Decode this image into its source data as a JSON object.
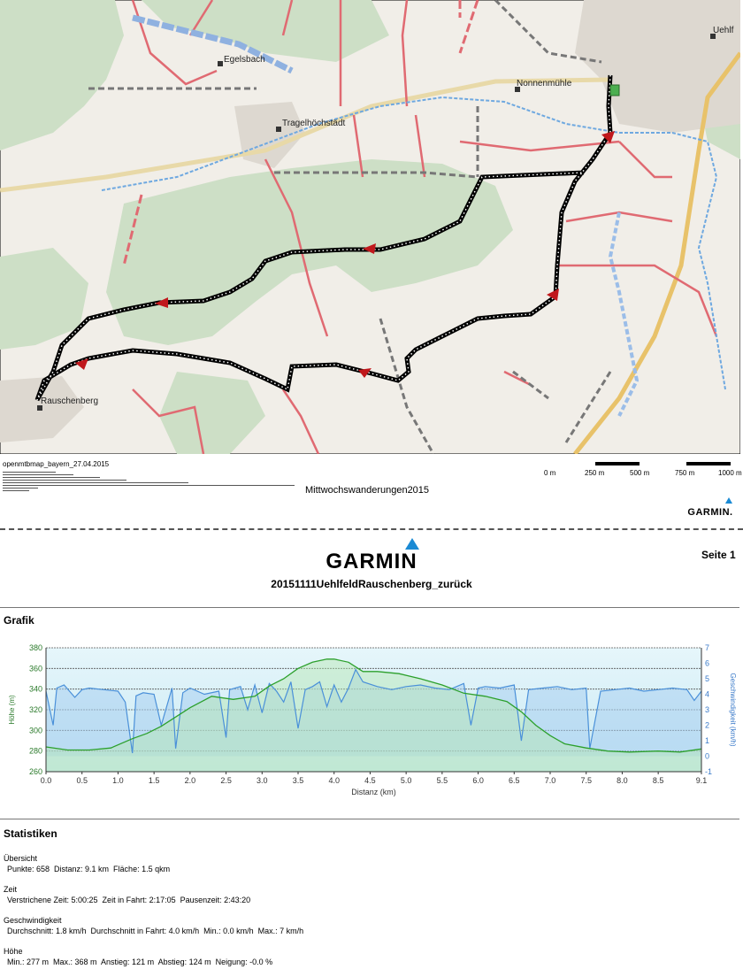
{
  "map": {
    "places": {
      "egelsbach": "Egelsbach",
      "nonnenmuehle": "Nonnenmühle",
      "tragelhoechstaedt": "Tragelhöchstädt",
      "rauschenberg": "Rauschenberg",
      "uehlfeld": "Uehlf"
    },
    "source": "openmtbmap_bayern_27.04.2015",
    "collection": "Mittwochswanderungen2015",
    "scale": [
      "0 m",
      "250 m",
      "500 m",
      "750 m",
      "1000 m"
    ],
    "brand": "GARMIN."
  },
  "header": {
    "brand": "GARMIN",
    "page": "Seite 1",
    "track_title": "20151111UehlfeldRauschenberg_zurück"
  },
  "grafik": {
    "title": "Grafik",
    "chart_data": {
      "type": "line",
      "xlabel": "Distanz   (km)",
      "ylabel_left": "Höhe (m)",
      "ylabel_right": "Geschwindigkeit (km/h)",
      "xlim": [
        0,
        9.1
      ],
      "ylim_left": [
        260,
        380
      ],
      "ylim_right": [
        -1,
        7
      ],
      "x_ticks": [
        "0.0",
        "0.5",
        "1.0",
        "1.5",
        "2.0",
        "2.5",
        "3.0",
        "3.5",
        "4.0",
        "4.5",
        "5.0",
        "5.5",
        "6.0",
        "6.5",
        "7.0",
        "7.5",
        "8.0",
        "8.5",
        "9.1"
      ],
      "y_ticks_left": [
        "260",
        "280",
        "300",
        "320",
        "340",
        "360",
        "380"
      ],
      "y_ticks_right": [
        "-1",
        "0",
        "1",
        "2",
        "3",
        "4",
        "5",
        "6",
        "7"
      ],
      "series": [
        {
          "name": "Höhe",
          "axis": "left",
          "color": "#2ca02c",
          "x": [
            0,
            0.3,
            0.6,
            0.9,
            1.2,
            1.4,
            1.6,
            1.8,
            2.0,
            2.3,
            2.6,
            2.9,
            3.1,
            3.3,
            3.5,
            3.7,
            3.9,
            4.0,
            4.2,
            4.4,
            4.6,
            4.9,
            5.2,
            5.5,
            5.8,
            6.1,
            6.4,
            6.6,
            6.8,
            7.0,
            7.2,
            7.5,
            7.8,
            8.1,
            8.5,
            8.8,
            9.1
          ],
          "y": [
            284,
            281,
            281,
            283,
            292,
            297,
            304,
            313,
            322,
            333,
            330,
            333,
            343,
            350,
            360,
            366,
            369,
            369,
            366,
            357,
            357,
            355,
            350,
            344,
            336,
            333,
            328,
            318,
            305,
            295,
            287,
            283,
            280,
            279,
            280,
            279,
            282
          ]
        },
        {
          "name": "Geschwindigkeit",
          "axis": "right",
          "color": "#4a90d9",
          "x": [
            0,
            0.1,
            0.15,
            0.25,
            0.4,
            0.5,
            0.6,
            0.8,
            1.0,
            1.1,
            1.2,
            1.25,
            1.35,
            1.5,
            1.6,
            1.75,
            1.8,
            1.9,
            2.0,
            2.2,
            2.4,
            2.5,
            2.55,
            2.7,
            2.8,
            2.9,
            3.0,
            3.1,
            3.2,
            3.3,
            3.4,
            3.5,
            3.6,
            3.7,
            3.8,
            3.9,
            4.0,
            4.1,
            4.2,
            4.3,
            4.4,
            4.6,
            4.8,
            5.0,
            5.2,
            5.4,
            5.6,
            5.8,
            5.9,
            6.0,
            6.1,
            6.3,
            6.5,
            6.6,
            6.7,
            6.9,
            7.1,
            7.3,
            7.5,
            7.55,
            7.7,
            7.9,
            8.1,
            8.3,
            8.5,
            8.7,
            8.9,
            9.0,
            9.1
          ],
          "y": [
            4.2,
            2.0,
            4.4,
            4.6,
            3.8,
            4.3,
            4.4,
            4.3,
            4.2,
            3.5,
            0.2,
            3.9,
            4.1,
            4.0,
            2.0,
            4.4,
            0.5,
            4.1,
            4.4,
            4.0,
            4.2,
            1.2,
            4.3,
            4.5,
            3.0,
            4.6,
            2.8,
            4.7,
            4.2,
            3.5,
            4.8,
            1.8,
            4.3,
            4.5,
            4.8,
            3.2,
            4.6,
            3.5,
            4.4,
            5.6,
            4.8,
            4.5,
            4.3,
            4.5,
            4.6,
            4.4,
            4.3,
            4.7,
            2.0,
            4.4,
            4.5,
            4.4,
            4.6,
            1.0,
            4.3,
            4.4,
            4.5,
            4.3,
            4.4,
            0.5,
            4.2,
            4.3,
            4.4,
            4.2,
            4.3,
            4.4,
            4.3,
            3.6,
            4.2
          ]
        }
      ]
    }
  },
  "stats": {
    "title": "Statistiken",
    "uebersicht": {
      "heading": "Übersicht",
      "line": "Punkte: 658  Distanz: 9.1 km  Fläche: 1.5 qkm"
    },
    "zeit": {
      "heading": "Zeit",
      "line": "Verstrichene Zeit: 5:00:25  Zeit in Fahrt: 2:17:05  Pausenzeit: 2:43:20"
    },
    "geschwindigkeit": {
      "heading": "Geschwindigkeit",
      "line": "Durchschnitt: 1.8 km/h  Durchschnitt in Fahrt: 4.0 km/h  Min.: 0.0 km/h  Max.: 7 km/h"
    },
    "hoehe": {
      "heading": "Höhe",
      "line": "Min.: 277 m  Max.: 368 m  Anstieg: 121 m  Abstieg: 124 m  Neigung: -0.0 %"
    }
  }
}
